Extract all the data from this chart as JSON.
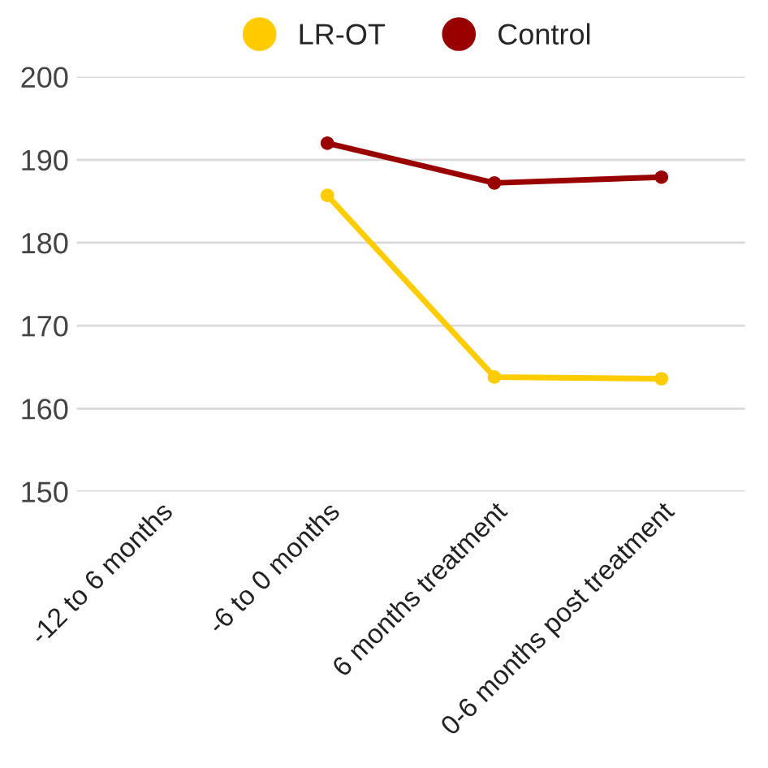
{
  "chart_data": {
    "type": "line",
    "categories": [
      "-12 to 6 months",
      "-6 to 0 months",
      "6 months treatment",
      "0-6 months post treatment"
    ],
    "series": [
      {
        "name": "LR-OT",
        "color": "#ffcc00",
        "values": [
          null,
          185.7,
          163.8,
          163.6
        ]
      },
      {
        "name": "Control",
        "color": "#990000",
        "values": [
          null,
          192.0,
          187.2,
          187.9
        ]
      }
    ],
    "ylim": [
      150,
      200
    ],
    "yticks": [
      150,
      160,
      170,
      180,
      190,
      200
    ],
    "grid": "y",
    "legend": "top",
    "marker": "circle",
    "line_style": "solid"
  }
}
